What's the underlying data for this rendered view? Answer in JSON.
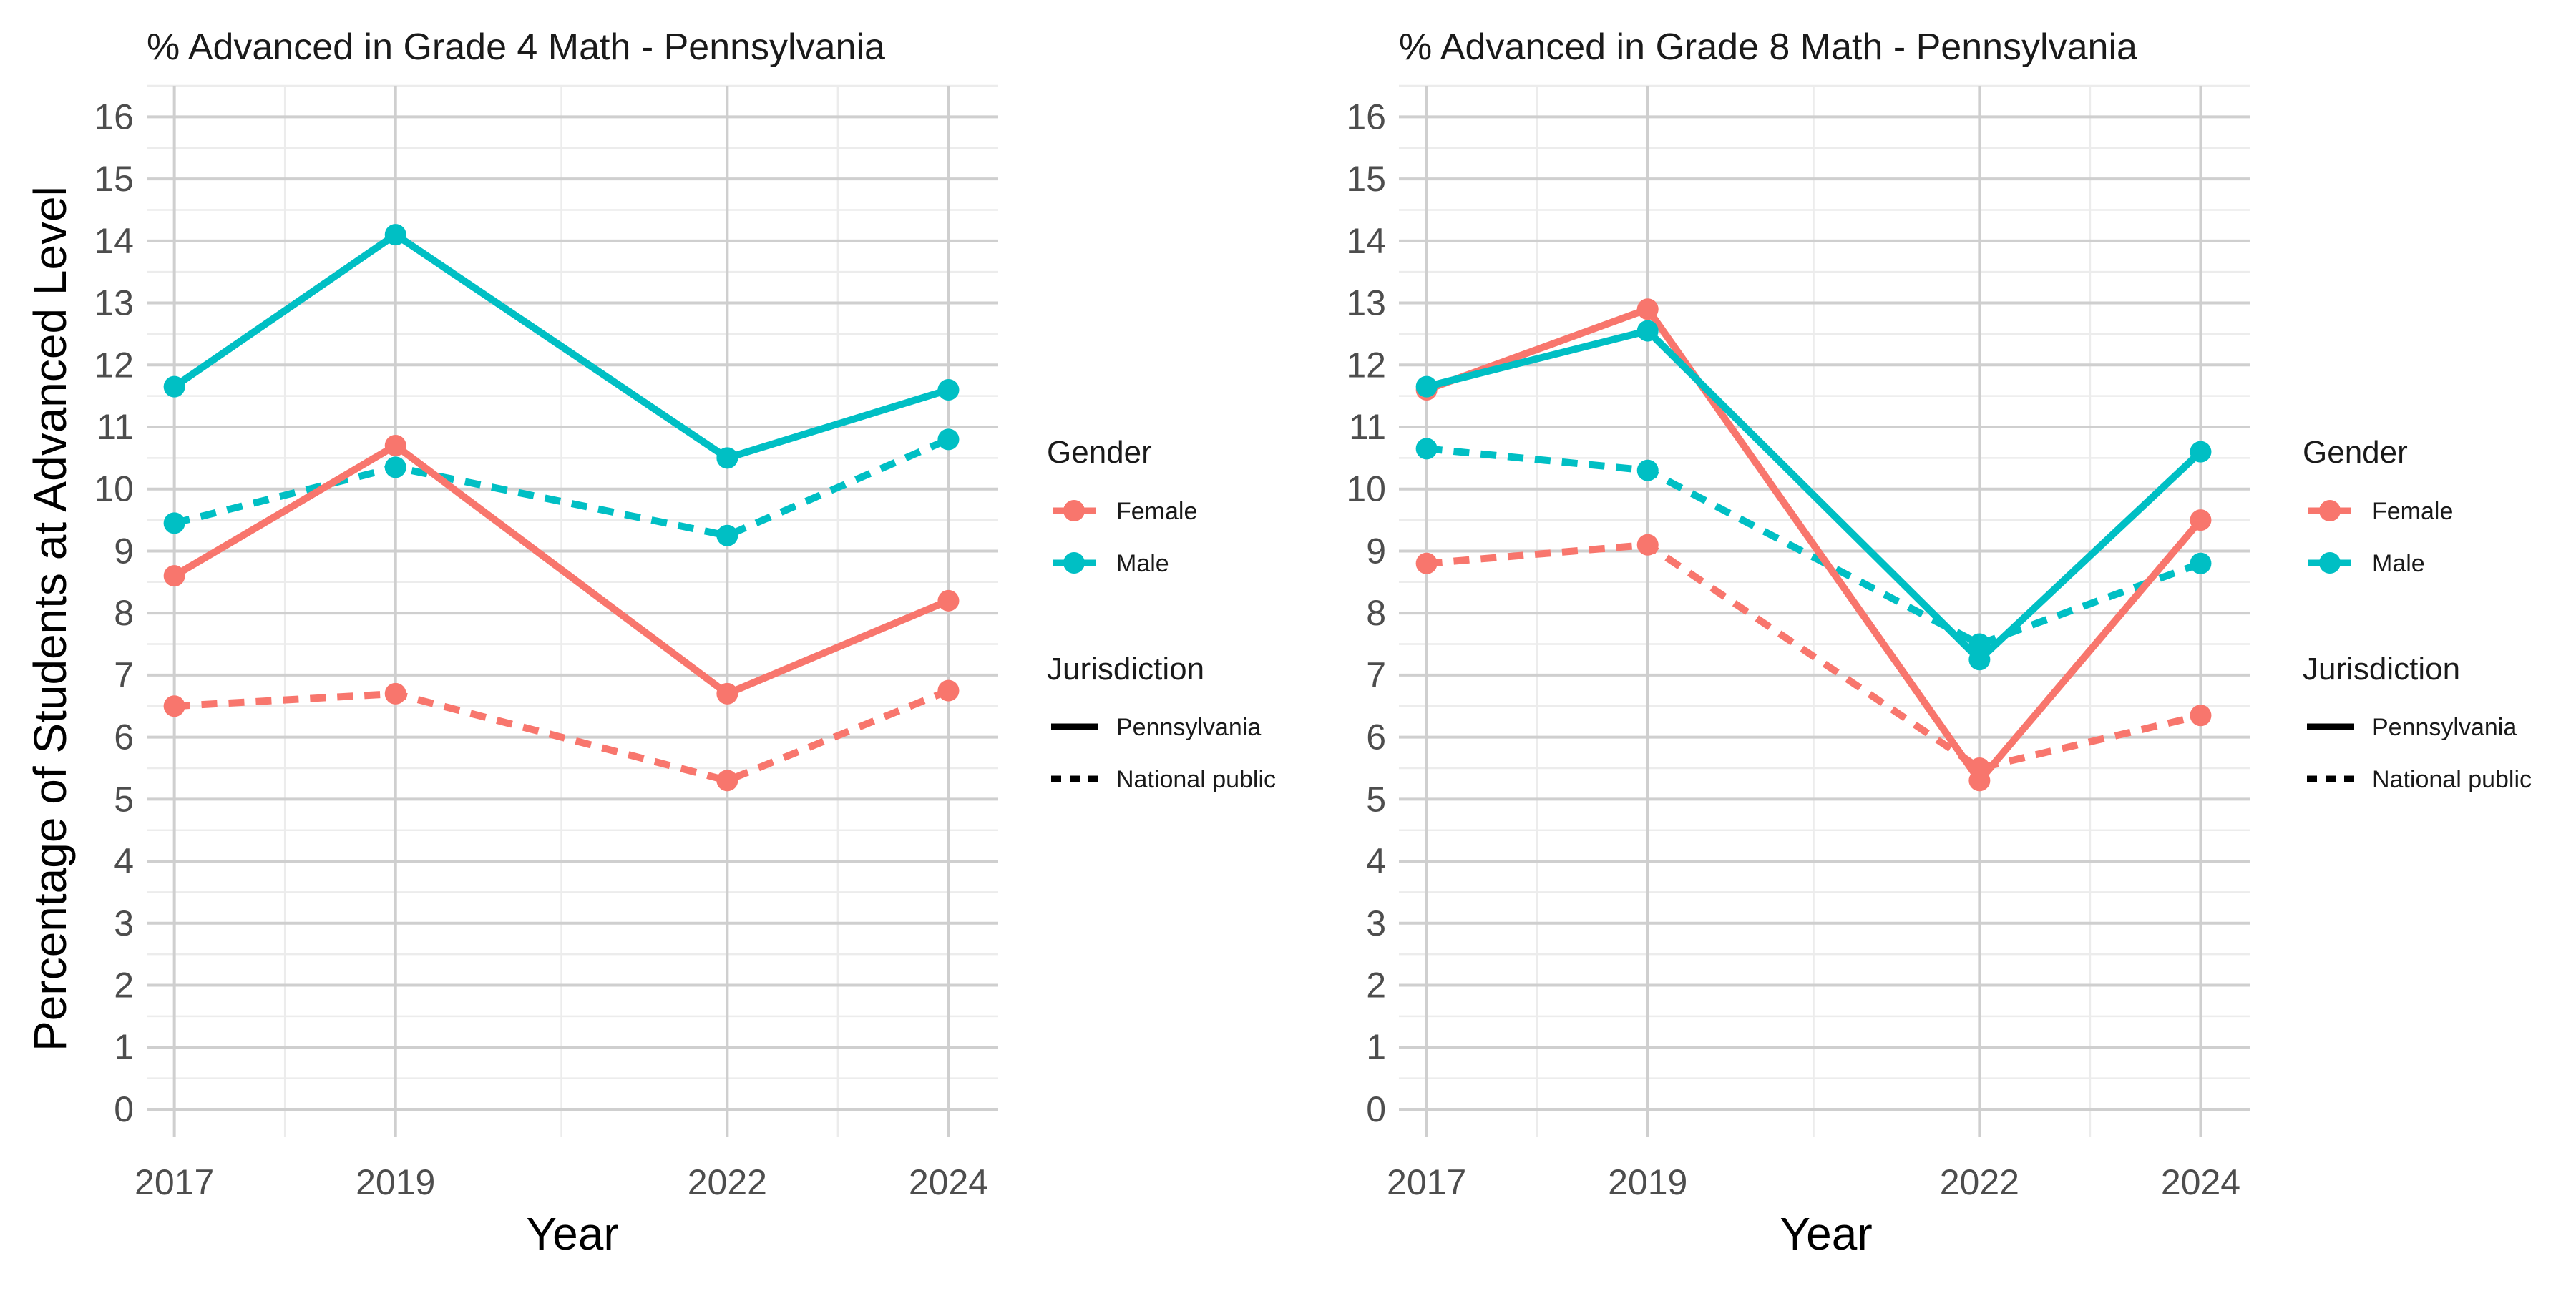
{
  "y_axis_title": "Percentage of Students at Advanced Level",
  "legend_titles": {
    "gender": "Gender",
    "jurisdiction": "Jurisdiction"
  },
  "chart_data": [
    {
      "type": "line",
      "title": "% Advanced in Grade 4 Math - Pennsylvania",
      "xlabel": "Year",
      "ylabel": "Percentage of Students at Advanced Level",
      "x": [
        2017,
        2019,
        2022,
        2024
      ],
      "xlim": [
        2016.75,
        2024.45
      ],
      "ylim": [
        -0.45,
        16.5
      ],
      "yticks": [
        0,
        1,
        2,
        3,
        4,
        5,
        6,
        7,
        8,
        9,
        10,
        11,
        12,
        13,
        14,
        15,
        16
      ],
      "grid": true,
      "legend_position": "right",
      "series": [
        {
          "name": "Female",
          "jurisdiction": "National public",
          "color": "#F8766D",
          "dash": true,
          "values": [
            6.5,
            6.7,
            5.3,
            6.75
          ]
        },
        {
          "name": "Male",
          "jurisdiction": "National public",
          "color": "#00BFC4",
          "dash": true,
          "values": [
            9.45,
            10.35,
            9.25,
            10.8
          ]
        },
        {
          "name": "Female",
          "jurisdiction": "Pennsylvania",
          "color": "#F8766D",
          "dash": false,
          "values": [
            8.6,
            10.7,
            6.7,
            8.2
          ]
        },
        {
          "name": "Male",
          "jurisdiction": "Pennsylvania",
          "color": "#00BFC4",
          "dash": false,
          "values": [
            11.65,
            14.1,
            10.5,
            11.6
          ]
        }
      ]
    },
    {
      "type": "line",
      "title": "% Advanced in Grade 8 Math - Pennsylvania",
      "xlabel": "Year",
      "ylabel": "",
      "x": [
        2017,
        2019,
        2022,
        2024
      ],
      "xlim": [
        2016.75,
        2024.45
      ],
      "ylim": [
        -0.45,
        16.5
      ],
      "yticks": [
        0,
        1,
        2,
        3,
        4,
        5,
        6,
        7,
        8,
        9,
        10,
        11,
        12,
        13,
        14,
        15,
        16
      ],
      "grid": true,
      "legend_position": "right",
      "series": [
        {
          "name": "Female",
          "jurisdiction": "National public",
          "color": "#F8766D",
          "dash": true,
          "values": [
            8.8,
            9.1,
            5.5,
            6.35
          ]
        },
        {
          "name": "Male",
          "jurisdiction": "National public",
          "color": "#00BFC4",
          "dash": true,
          "values": [
            10.65,
            10.3,
            7.5,
            8.8
          ]
        },
        {
          "name": "Female",
          "jurisdiction": "Pennsylvania",
          "color": "#F8766D",
          "dash": false,
          "values": [
            11.6,
            12.9,
            5.3,
            9.5
          ]
        },
        {
          "name": "Male",
          "jurisdiction": "Pennsylvania",
          "color": "#00BFC4",
          "dash": false,
          "values": [
            11.65,
            12.55,
            7.25,
            10.6
          ]
        }
      ]
    }
  ],
  "legend": {
    "gender": [
      {
        "label": "Female",
        "color": "#F8766D"
      },
      {
        "label": "Male",
        "color": "#00BFC4"
      }
    ],
    "jurisdiction": [
      {
        "label": "Pennsylvania",
        "dash": false
      },
      {
        "label": "National public",
        "dash": true
      }
    ]
  }
}
